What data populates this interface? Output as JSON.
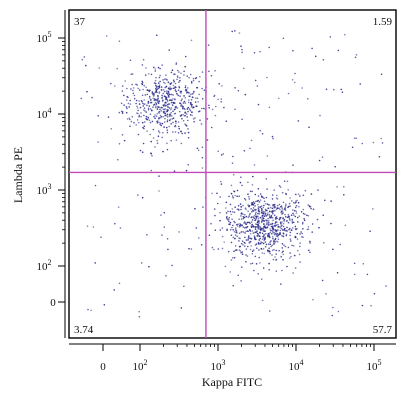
{
  "chart_data": {
    "type": "scatter",
    "title": "",
    "xlabel": "Kappa FITC",
    "ylabel": "Lambda PE",
    "x_scale": "log (biexponential near 0)",
    "y_scale": "log (biexponential near 0)",
    "x_ticks": [
      {
        "value": 0,
        "base": "0",
        "exp": ""
      },
      {
        "value": 100,
        "base": "10",
        "exp": "2"
      },
      {
        "value": 1000,
        "base": "10",
        "exp": "3"
      },
      {
        "value": 10000,
        "base": "10",
        "exp": "4"
      },
      {
        "value": 100000,
        "base": "10",
        "exp": "5"
      }
    ],
    "y_ticks": [
      {
        "value": 0,
        "base": "0",
        "exp": ""
      },
      {
        "value": 100,
        "base": "10",
        "exp": "2"
      },
      {
        "value": 1000,
        "base": "10",
        "exp": "3"
      },
      {
        "value": 10000,
        "base": "10",
        "exp": "4"
      },
      {
        "value": 100000,
        "base": "10",
        "exp": "5"
      }
    ],
    "gates": {
      "x": 700,
      "y": 1700
    },
    "quadrant_percentages": {
      "upper_left": "37",
      "upper_right": "1.59",
      "lower_left": "3.74",
      "lower_right": "57.7"
    },
    "populations": [
      {
        "region": "upper_left",
        "center": {
          "x": 200,
          "y": 14000
        },
        "approx_points": 550
      },
      {
        "region": "lower_right",
        "center": {
          "x": 4000,
          "y": 350
        },
        "approx_points": 780
      },
      {
        "region": "scattered",
        "approx_points": 220
      }
    ],
    "colors": {
      "points": "#2a2a8a",
      "gate_lines": "#c04ab8",
      "axes": "#000000"
    },
    "grid": false,
    "legend": "none"
  }
}
